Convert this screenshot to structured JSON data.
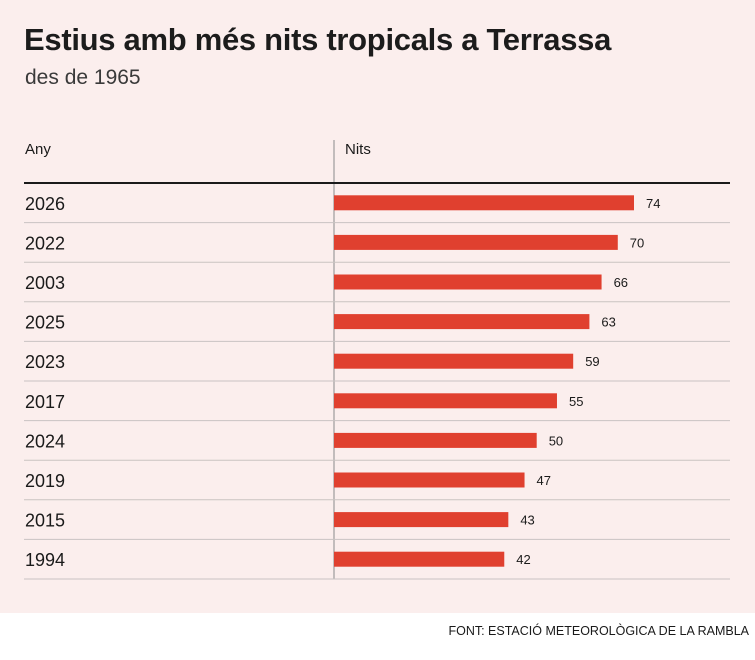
{
  "title": "Estius amb més nits tropicals a Terrassa",
  "subtitle": "des de 1965",
  "source": "FONT: ESTACIÓ METEOROLÒGICA DE LA RAMBLA",
  "colors": {
    "bar": "#e0402f",
    "background": "#fbeeed",
    "rule": "#1a1a1a",
    "gridline": "#c9c3c2"
  },
  "chart_data": {
    "type": "bar",
    "orientation": "horizontal",
    "column_headers": {
      "category": "Any",
      "value": "Nits"
    },
    "categories": [
      "2026",
      "2022",
      "2003",
      "2025",
      "2023",
      "2017",
      "2024",
      "2019",
      "2015",
      "1994"
    ],
    "values": [
      74,
      70,
      66,
      63,
      59,
      55,
      50,
      47,
      43,
      42
    ],
    "data_labels": true
  }
}
